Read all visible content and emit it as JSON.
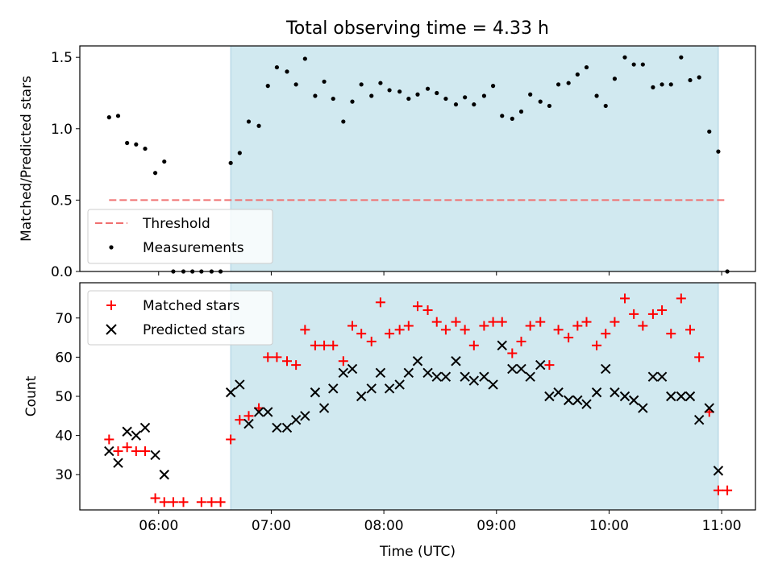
{
  "chart_data": {
    "title": "Total observing time = 4.33 h",
    "xlabel": "Time (UTC)",
    "x_unit": "hours UTC",
    "xlim": [
      5.3,
      11.3
    ],
    "xticks": [
      {
        "value": 6,
        "label": "06:00"
      },
      {
        "value": 7,
        "label": "07:00"
      },
      {
        "value": 8,
        "label": "08:00"
      },
      {
        "value": 9,
        "label": "09:00"
      },
      {
        "value": 10,
        "label": "10:00"
      },
      {
        "value": 11,
        "label": "11:00"
      }
    ],
    "shaded_interval": [
      6.64,
      10.97
    ],
    "shade_color": "#d1e9f0",
    "panels": [
      {
        "type": "scatter",
        "ylabel": "Matched/Predicted stars",
        "ylim": [
          0,
          1.58
        ],
        "yticks": [
          {
            "value": 0.0,
            "label": "0.0"
          },
          {
            "value": 0.5,
            "label": "0.5"
          },
          {
            "value": 1.0,
            "label": "1.0"
          },
          {
            "value": 1.5,
            "label": "1.5"
          }
        ],
        "threshold": {
          "name": "Threshold",
          "value": 0.5,
          "x_range": [
            5.56,
            11.03
          ],
          "color": "#f07070"
        },
        "legend": {
          "position": "lower-left",
          "entries": [
            "Threshold",
            "Measurements"
          ]
        },
        "series": [
          {
            "name": "Measurements",
            "marker": "dot",
            "color": "#000000",
            "points": [
              [
                5.56,
                1.08
              ],
              [
                5.64,
                1.09
              ],
              [
                5.72,
                0.9
              ],
              [
                5.8,
                0.89
              ],
              [
                5.88,
                0.86
              ],
              [
                5.97,
                0.69
              ],
              [
                6.05,
                0.77
              ],
              [
                6.13,
                0.0
              ],
              [
                6.22,
                0.0
              ],
              [
                6.3,
                0.0
              ],
              [
                6.38,
                0.0
              ],
              [
                6.47,
                0.0
              ],
              [
                6.55,
                0.0
              ],
              [
                6.64,
                0.76
              ],
              [
                6.72,
                0.83
              ],
              [
                6.8,
                1.05
              ],
              [
                6.89,
                1.02
              ],
              [
                6.97,
                1.3
              ],
              [
                7.05,
                1.43
              ],
              [
                7.14,
                1.4
              ],
              [
                7.22,
                1.31
              ],
              [
                7.3,
                1.49
              ],
              [
                7.39,
                1.23
              ],
              [
                7.47,
                1.33
              ],
              [
                7.55,
                1.21
              ],
              [
                7.64,
                1.05
              ],
              [
                7.72,
                1.19
              ],
              [
                7.8,
                1.31
              ],
              [
                7.89,
                1.23
              ],
              [
                7.97,
                1.32
              ],
              [
                8.05,
                1.27
              ],
              [
                8.14,
                1.26
              ],
              [
                8.22,
                1.21
              ],
              [
                8.3,
                1.24
              ],
              [
                8.39,
                1.28
              ],
              [
                8.47,
                1.25
              ],
              [
                8.55,
                1.21
              ],
              [
                8.64,
                1.17
              ],
              [
                8.72,
                1.22
              ],
              [
                8.8,
                1.17
              ],
              [
                8.89,
                1.23
              ],
              [
                8.97,
                1.3
              ],
              [
                9.05,
                1.09
              ],
              [
                9.14,
                1.07
              ],
              [
                9.22,
                1.12
              ],
              [
                9.3,
                1.24
              ],
              [
                9.39,
                1.19
              ],
              [
                9.47,
                1.16
              ],
              [
                9.55,
                1.31
              ],
              [
                9.64,
                1.32
              ],
              [
                9.72,
                1.38
              ],
              [
                9.8,
                1.43
              ],
              [
                9.89,
                1.23
              ],
              [
                9.97,
                1.16
              ],
              [
                10.05,
                1.35
              ],
              [
                10.14,
                1.5
              ],
              [
                10.22,
                1.45
              ],
              [
                10.3,
                1.45
              ],
              [
                10.39,
                1.29
              ],
              [
                10.47,
                1.31
              ],
              [
                10.55,
                1.31
              ],
              [
                10.64,
                1.5
              ],
              [
                10.72,
                1.34
              ],
              [
                10.8,
                1.36
              ],
              [
                10.89,
                0.98
              ],
              [
                10.97,
                0.84
              ],
              [
                11.05,
                0.0
              ]
            ]
          }
        ]
      },
      {
        "type": "scatter",
        "ylabel": "Count",
        "ylim": [
          21,
          79
        ],
        "yticks": [
          {
            "value": 30,
            "label": "30"
          },
          {
            "value": 40,
            "label": "40"
          },
          {
            "value": 50,
            "label": "50"
          },
          {
            "value": 60,
            "label": "60"
          },
          {
            "value": 70,
            "label": "70"
          }
        ],
        "legend": {
          "position": "upper-left",
          "entries": [
            "Matched stars",
            "Predicted stars"
          ]
        },
        "series": [
          {
            "name": "Matched stars",
            "marker": "plus",
            "color": "#ff0000",
            "points": [
              [
                5.56,
                39
              ],
              [
                5.64,
                36
              ],
              [
                5.72,
                37
              ],
              [
                5.8,
                36
              ],
              [
                5.88,
                36
              ],
              [
                5.97,
                24
              ],
              [
                6.05,
                23
              ],
              [
                6.13,
                23
              ],
              [
                6.22,
                23
              ],
              [
                6.38,
                23
              ],
              [
                6.47,
                23
              ],
              [
                6.55,
                23
              ],
              [
                6.64,
                39
              ],
              [
                6.72,
                44
              ],
              [
                6.8,
                45
              ],
              [
                6.89,
                47
              ],
              [
                6.97,
                60
              ],
              [
                7.05,
                60
              ],
              [
                7.14,
                59
              ],
              [
                7.22,
                58
              ],
              [
                7.3,
                67
              ],
              [
                7.39,
                63
              ],
              [
                7.47,
                63
              ],
              [
                7.55,
                63
              ],
              [
                7.64,
                59
              ],
              [
                7.72,
                68
              ],
              [
                7.8,
                66
              ],
              [
                7.89,
                64
              ],
              [
                7.97,
                74
              ],
              [
                8.05,
                66
              ],
              [
                8.14,
                67
              ],
              [
                8.22,
                68
              ],
              [
                8.3,
                73
              ],
              [
                8.39,
                72
              ],
              [
                8.47,
                69
              ],
              [
                8.55,
                67
              ],
              [
                8.64,
                69
              ],
              [
                8.72,
                67
              ],
              [
                8.8,
                63
              ],
              [
                8.89,
                68
              ],
              [
                8.97,
                69
              ],
              [
                9.05,
                69
              ],
              [
                9.14,
                61
              ],
              [
                9.22,
                64
              ],
              [
                9.3,
                68
              ],
              [
                9.39,
                69
              ],
              [
                9.47,
                58
              ],
              [
                9.55,
                67
              ],
              [
                9.64,
                65
              ],
              [
                9.72,
                68
              ],
              [
                9.8,
                69
              ],
              [
                9.89,
                63
              ],
              [
                9.97,
                66
              ],
              [
                10.05,
                69
              ],
              [
                10.14,
                75
              ],
              [
                10.22,
                71
              ],
              [
                10.3,
                68
              ],
              [
                10.39,
                71
              ],
              [
                10.47,
                72
              ],
              [
                10.55,
                66
              ],
              [
                10.64,
                75
              ],
              [
                10.72,
                67
              ],
              [
                10.8,
                60
              ],
              [
                10.89,
                46
              ],
              [
                10.97,
                26
              ],
              [
                11.05,
                26
              ]
            ]
          },
          {
            "name": "Predicted stars",
            "marker": "x",
            "color": "#000000",
            "points": [
              [
                5.56,
                36
              ],
              [
                5.64,
                33
              ],
              [
                5.72,
                41
              ],
              [
                5.8,
                40
              ],
              [
                5.88,
                42
              ],
              [
                5.97,
                35
              ],
              [
                6.05,
                30
              ],
              [
                6.64,
                51
              ],
              [
                6.72,
                53
              ],
              [
                6.8,
                43
              ],
              [
                6.89,
                46
              ],
              [
                6.97,
                46
              ],
              [
                7.05,
                42
              ],
              [
                7.14,
                42
              ],
              [
                7.22,
                44
              ],
              [
                7.3,
                45
              ],
              [
                7.39,
                51
              ],
              [
                7.47,
                47
              ],
              [
                7.55,
                52
              ],
              [
                7.64,
                56
              ],
              [
                7.72,
                57
              ],
              [
                7.8,
                50
              ],
              [
                7.89,
                52
              ],
              [
                7.97,
                56
              ],
              [
                8.05,
                52
              ],
              [
                8.14,
                53
              ],
              [
                8.22,
                56
              ],
              [
                8.3,
                59
              ],
              [
                8.39,
                56
              ],
              [
                8.47,
                55
              ],
              [
                8.55,
                55
              ],
              [
                8.64,
                59
              ],
              [
                8.72,
                55
              ],
              [
                8.8,
                54
              ],
              [
                8.89,
                55
              ],
              [
                8.97,
                53
              ],
              [
                9.05,
                63
              ],
              [
                9.14,
                57
              ],
              [
                9.22,
                57
              ],
              [
                9.3,
                55
              ],
              [
                9.39,
                58
              ],
              [
                9.47,
                50
              ],
              [
                9.55,
                51
              ],
              [
                9.64,
                49
              ],
              [
                9.72,
                49
              ],
              [
                9.8,
                48
              ],
              [
                9.89,
                51
              ],
              [
                9.97,
                57
              ],
              [
                10.05,
                51
              ],
              [
                10.14,
                50
              ],
              [
                10.22,
                49
              ],
              [
                10.3,
                47
              ],
              [
                10.39,
                55
              ],
              [
                10.47,
                55
              ],
              [
                10.55,
                50
              ],
              [
                10.64,
                50
              ],
              [
                10.72,
                50
              ],
              [
                10.8,
                44
              ],
              [
                10.89,
                47
              ],
              [
                10.97,
                31
              ]
            ]
          }
        ]
      }
    ]
  }
}
